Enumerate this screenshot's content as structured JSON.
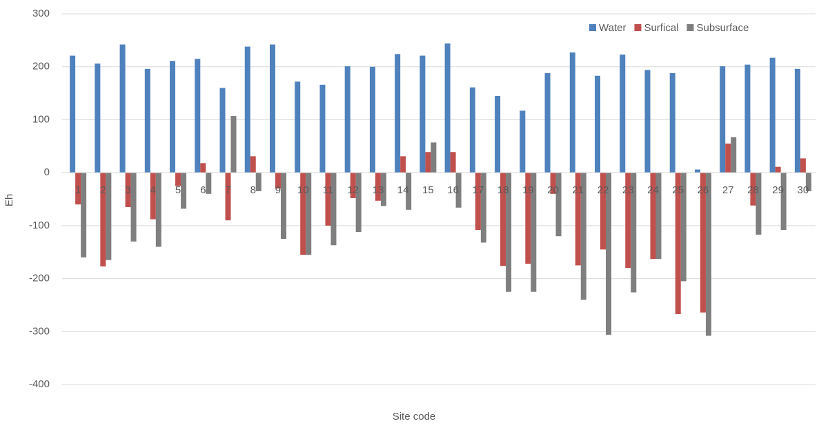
{
  "chart_data": {
    "type": "bar",
    "x_label": "Site code",
    "y_label": "Eh",
    "categories": [
      "1",
      "2",
      "3",
      "4",
      "5",
      "6",
      "7",
      "8",
      "9",
      "10",
      "11",
      "12",
      "13",
      "14",
      "15",
      "16",
      "17",
      "18",
      "19",
      "20",
      "21",
      "22",
      "23",
      "24",
      "25",
      "26",
      "27",
      "28",
      "29",
      "30"
    ],
    "series": [
      {
        "name": "Water",
        "color": "#4f81bd",
        "values": [
          221,
          206,
          242,
          196,
          211,
          215,
          160,
          238,
          242,
          172,
          166,
          201,
          200,
          224,
          221,
          244,
          161,
          145,
          117,
          188,
          227,
          183,
          223,
          194,
          188,
          6,
          201,
          204,
          217,
          196
        ]
      },
      {
        "name": "Surfical",
        "color": "#c0504d",
        "values": [
          -60,
          -177,
          -65,
          -88,
          -25,
          18,
          -90,
          31,
          -30,
          -155,
          -100,
          -48,
          -53,
          31,
          39,
          39,
          -108,
          -176,
          -172,
          -40,
          -175,
          -145,
          -180,
          -163,
          -267,
          -264,
          55,
          -62,
          11,
          27
        ]
      },
      {
        "name": "Subsurface",
        "color": "#7f7f7f",
        "values": [
          -160,
          -165,
          -130,
          -140,
          -68,
          -40,
          107,
          -35,
          -125,
          -155,
          -137,
          -112,
          -63,
          -70,
          57,
          -66,
          -132,
          -225,
          -225,
          -120,
          -240,
          -306,
          -226,
          -163,
          -205,
          -308,
          67,
          -117,
          -108,
          -35
        ]
      }
    ],
    "ylim": [
      -400,
      300
    ],
    "yticks": [
      -400,
      -300,
      -200,
      -100,
      0,
      100,
      200,
      300
    ],
    "grid": true,
    "legend": "top-right"
  }
}
